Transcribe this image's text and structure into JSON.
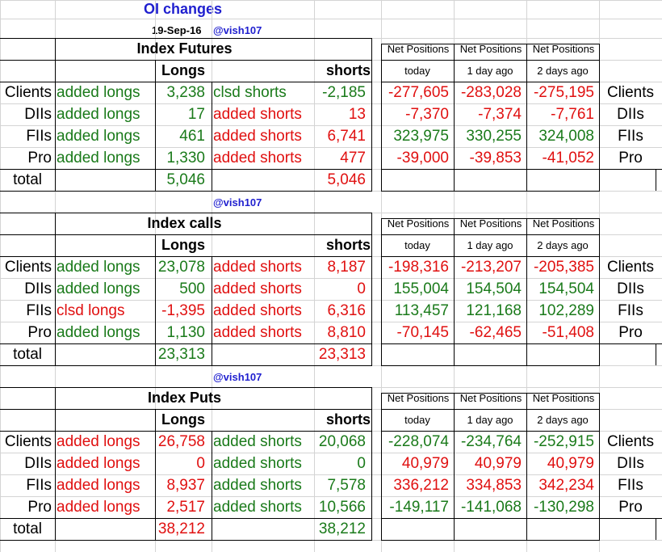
{
  "title": "OI changes",
  "date": "19-Sep-16",
  "handle": "@vish107",
  "col_longs": "Longs",
  "col_shorts": "shorts",
  "np_header": "Net Positions",
  "np_today": "today",
  "np_1day": "1 day ago",
  "np_2day": "2 days ago",
  "total_label": "total",
  "colors": {
    "green": "#1a7a1a",
    "red": "#e01010",
    "blue": "#1f1fcf"
  },
  "sections": [
    {
      "name": "Index Futures",
      "rows": [
        {
          "entity": "Clients",
          "long_label": "added longs",
          "long_color": "green",
          "long_value": "3,238",
          "short_label": "clsd shorts",
          "short_color": "green",
          "short_value": "-2,185",
          "np": [
            "-277,605",
            "-283,028",
            "-275,195"
          ],
          "np_color": "red"
        },
        {
          "entity": "DIIs",
          "long_label": "added longs",
          "long_color": "green",
          "long_value": "17",
          "short_label": "added shorts",
          "short_color": "red",
          "short_value": "13",
          "np": [
            "-7,370",
            "-7,374",
            "-7,761"
          ],
          "np_color": "red"
        },
        {
          "entity": "FIIs",
          "long_label": "added longs",
          "long_color": "green",
          "long_value": "461",
          "short_label": "added shorts",
          "short_color": "red",
          "short_value": "6,741",
          "np": [
            "323,975",
            "330,255",
            "324,008"
          ],
          "np_color": "green"
        },
        {
          "entity": "Pro",
          "long_label": "added longs",
          "long_color": "green",
          "long_value": "1,330",
          "short_label": "added shorts",
          "short_color": "red",
          "short_value": "477",
          "np": [
            "-39,000",
            "-39,853",
            "-41,052"
          ],
          "np_color": "red"
        }
      ],
      "total_long": "5,046",
      "total_long_color": "green",
      "total_short": "5,046",
      "total_short_color": "red"
    },
    {
      "name": "Index calls",
      "rows": [
        {
          "entity": "Clients",
          "long_label": "added longs",
          "long_color": "green",
          "long_value": "23,078",
          "short_label": "added shorts",
          "short_color": "red",
          "short_value": "8,187",
          "np": [
            "-198,316",
            "-213,207",
            "-205,385"
          ],
          "np_color": "red"
        },
        {
          "entity": "DIIs",
          "long_label": "added longs",
          "long_color": "green",
          "long_value": "500",
          "short_label": "added shorts",
          "short_color": "red",
          "short_value": "0",
          "np": [
            "155,004",
            "154,504",
            "154,504"
          ],
          "np_color": "green"
        },
        {
          "entity": "FIIs",
          "long_label": "clsd longs",
          "long_color": "red",
          "long_value": "-1,395",
          "short_label": "added shorts",
          "short_color": "red",
          "short_value": "6,316",
          "np": [
            "113,457",
            "121,168",
            "102,289"
          ],
          "np_color": "green"
        },
        {
          "entity": "Pro",
          "long_label": "added longs",
          "long_color": "green",
          "long_value": "1,130",
          "short_label": "added shorts",
          "short_color": "red",
          "short_value": "8,810",
          "np": [
            "-70,145",
            "-62,465",
            "-51,408"
          ],
          "np_color": "red"
        }
      ],
      "total_long": "23,313",
      "total_long_color": "green",
      "total_short": "23,313",
      "total_short_color": "red"
    },
    {
      "name": "Index Puts",
      "rows": [
        {
          "entity": "Clients",
          "long_label": "added longs",
          "long_color": "red",
          "long_value": "26,758",
          "short_label": "added shorts",
          "short_color": "green",
          "short_value": "20,068",
          "np": [
            "-228,074",
            "-234,764",
            "-252,915"
          ],
          "np_color": "green"
        },
        {
          "entity": "DIIs",
          "long_label": "added longs",
          "long_color": "red",
          "long_value": "0",
          "short_label": "added shorts",
          "short_color": "green",
          "short_value": "0",
          "np": [
            "40,979",
            "40,979",
            "40,979"
          ],
          "np_color": "red"
        },
        {
          "entity": "FIIs",
          "long_label": "added longs",
          "long_color": "red",
          "long_value": "8,937",
          "short_label": "added shorts",
          "short_color": "green",
          "short_value": "7,578",
          "np": [
            "336,212",
            "334,853",
            "342,234"
          ],
          "np_color": "red"
        },
        {
          "entity": "Pro",
          "long_label": "added longs",
          "long_color": "red",
          "long_value": "2,517",
          "short_label": "added shorts",
          "short_color": "green",
          "short_value": "10,566",
          "np": [
            "-149,117",
            "-141,068",
            "-130,298"
          ],
          "np_color": "green"
        }
      ],
      "total_long": "38,212",
      "total_long_color": "red",
      "total_short": "38,212",
      "total_short_color": "green"
    }
  ]
}
